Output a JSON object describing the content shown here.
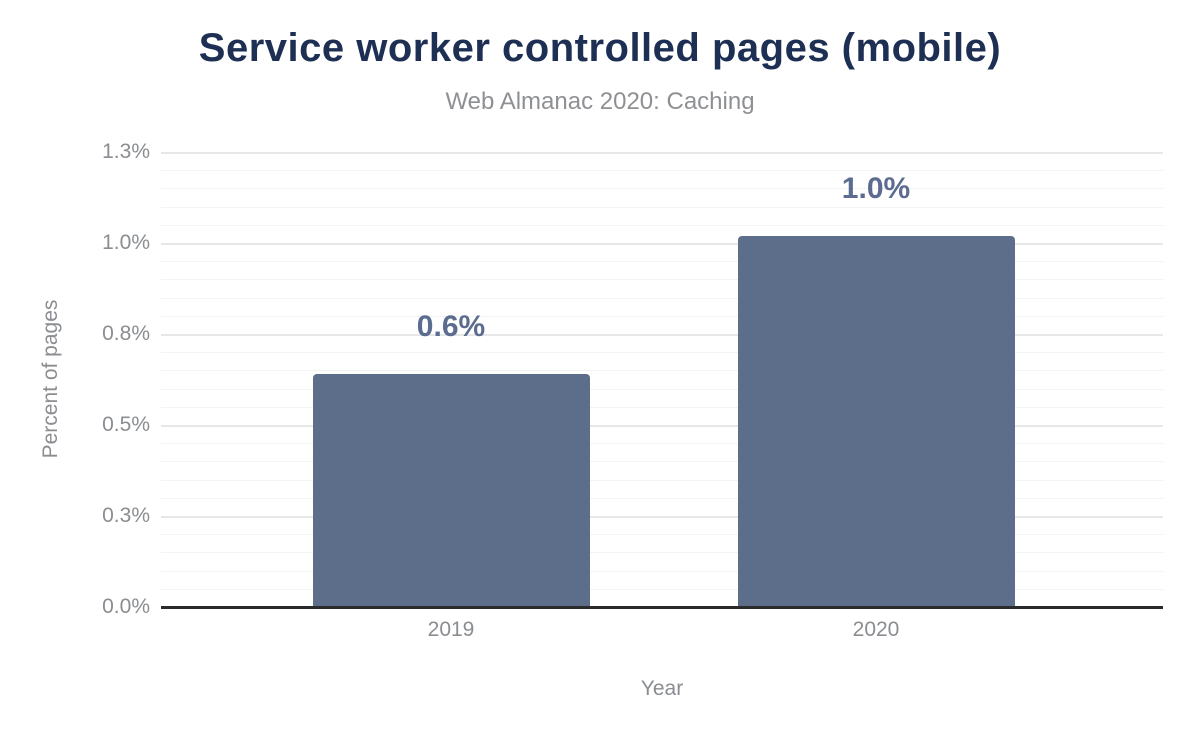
{
  "header": {
    "title": "Service worker controlled pages (mobile)",
    "subtitle": "Web Almanac 2020: Caching"
  },
  "chart_data": {
    "type": "bar",
    "title": "Service worker controlled pages (mobile)",
    "subtitle": "Web Almanac 2020: Caching",
    "categories": [
      "2019",
      "2020"
    ],
    "values": [
      0.64,
      1.02
    ],
    "value_labels": [
      "0.6%",
      "1.0%"
    ],
    "xlabel": "Year",
    "ylabel": "Percent of pages",
    "ylim": [
      0,
      1.25
    ],
    "yticks": {
      "values": [
        0,
        0.25,
        0.5,
        0.75,
        1.0,
        1.25
      ],
      "labels": [
        "0.0%",
        "0.3%",
        "0.5%",
        "0.8%",
        "1.0%",
        "1.3%"
      ]
    },
    "minor_tick_step": 0.05,
    "grid": "horizontal-major-and-minor",
    "legend": "none",
    "colors": {
      "bar": "#5d6e8a",
      "value_label": "#5b6c90",
      "title": "#1e2f54",
      "subtitle": "#8e9093",
      "axis_text": "#8a8d91",
      "baseline": "#2b2b2b",
      "grid_major": "#e7e7e7",
      "grid_minor": "#f3f3f3",
      "background": "#ffffff"
    }
  }
}
